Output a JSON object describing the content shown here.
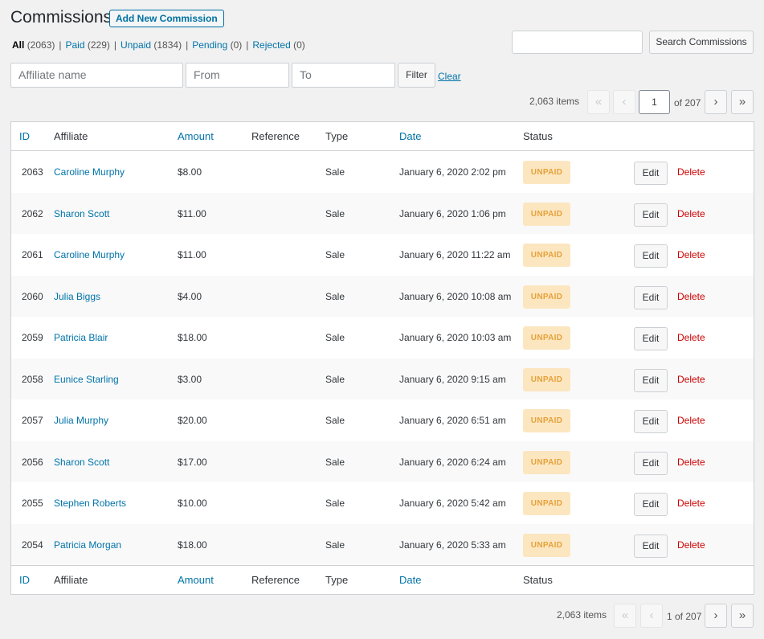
{
  "header": {
    "title": "Commissions",
    "add_new_label": "Add New Commission"
  },
  "views": [
    {
      "label": "All",
      "count": "(2063)",
      "current": true
    },
    {
      "label": "Paid",
      "count": "(229)",
      "current": false
    },
    {
      "label": "Unpaid",
      "count": "(1834)",
      "current": false
    },
    {
      "label": "Pending",
      "count": "(0)",
      "current": false
    },
    {
      "label": "Rejected",
      "count": "(0)",
      "current": false
    }
  ],
  "view_separator": "|",
  "search": {
    "value": "",
    "button_label": "Search Commissions"
  },
  "filters": {
    "affiliate_placeholder": "Affiliate name",
    "from_placeholder": "From",
    "to_placeholder": "To",
    "filter_label": "Filter",
    "clear_label": "Clear"
  },
  "pagination_top": {
    "items_count": "2,063 items",
    "first": "«",
    "prev": "‹",
    "current_page": "1",
    "of_total": "of 207",
    "next": "›",
    "last": "»"
  },
  "pagination_bottom": {
    "items_count": "2,063 items",
    "first": "«",
    "prev": "‹",
    "page_of": "1 of 207",
    "next": "›",
    "last": "»"
  },
  "columns": {
    "id": "ID",
    "affiliate": "Affiliate",
    "amount": "Amount",
    "reference": "Reference",
    "type": "Type",
    "date": "Date",
    "status": "Status"
  },
  "row_actions": {
    "edit": "Edit",
    "delete": "Delete"
  },
  "rows": [
    {
      "id": "2063",
      "affiliate": "Caroline Murphy",
      "amount": "$8.00",
      "reference": "",
      "type": "Sale",
      "date": "January 6, 2020 2:02 pm",
      "status": "UNPAID"
    },
    {
      "id": "2062",
      "affiliate": "Sharon Scott",
      "amount": "$11.00",
      "reference": "",
      "type": "Sale",
      "date": "January 6, 2020 1:06 pm",
      "status": "UNPAID"
    },
    {
      "id": "2061",
      "affiliate": "Caroline Murphy",
      "amount": "$11.00",
      "reference": "",
      "type": "Sale",
      "date": "January 6, 2020 11:22 am",
      "status": "UNPAID"
    },
    {
      "id": "2060",
      "affiliate": "Julia Biggs",
      "amount": "$4.00",
      "reference": "",
      "type": "Sale",
      "date": "January 6, 2020 10:08 am",
      "status": "UNPAID"
    },
    {
      "id": "2059",
      "affiliate": "Patricia Blair",
      "amount": "$18.00",
      "reference": "",
      "type": "Sale",
      "date": "January 6, 2020 10:03 am",
      "status": "UNPAID"
    },
    {
      "id": "2058",
      "affiliate": "Eunice Starling",
      "amount": "$3.00",
      "reference": "",
      "type": "Sale",
      "date": "January 6, 2020 9:15 am",
      "status": "UNPAID"
    },
    {
      "id": "2057",
      "affiliate": "Julia Murphy",
      "amount": "$20.00",
      "reference": "",
      "type": "Sale",
      "date": "January 6, 2020 6:51 am",
      "status": "UNPAID"
    },
    {
      "id": "2056",
      "affiliate": "Sharon Scott",
      "amount": "$17.00",
      "reference": "",
      "type": "Sale",
      "date": "January 6, 2020 6:24 am",
      "status": "UNPAID"
    },
    {
      "id": "2055",
      "affiliate": "Stephen Roberts",
      "amount": "$10.00",
      "reference": "",
      "type": "Sale",
      "date": "January 6, 2020 5:42 am",
      "status": "UNPAID"
    },
    {
      "id": "2054",
      "affiliate": "Patricia Morgan",
      "amount": "$18.00",
      "reference": "",
      "type": "Sale",
      "date": "January 6, 2020 5:33 am",
      "status": "UNPAID"
    }
  ],
  "colors": {
    "link": "#0073aa",
    "delete": "#cc0000",
    "unpaid_badge_bg": "#fce6c0",
    "unpaid_badge_text": "#e5a23a",
    "page_bg": "#f1f1f1"
  }
}
